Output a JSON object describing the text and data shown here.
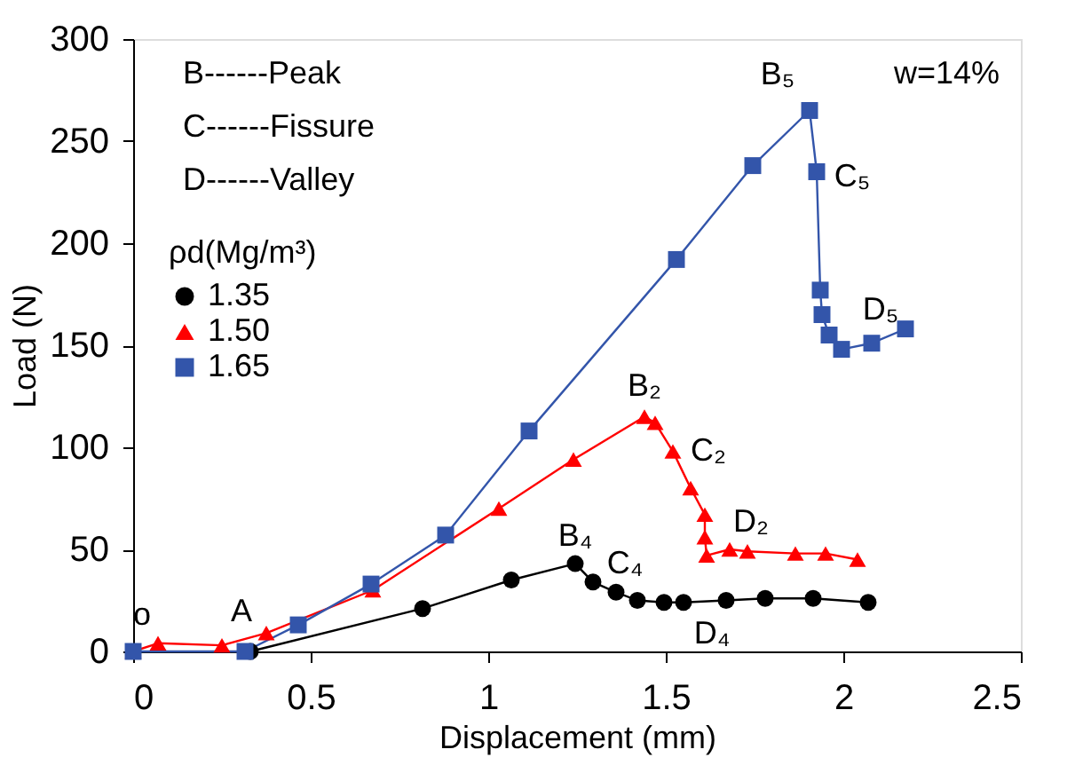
{
  "chart_data": {
    "type": "line",
    "xlabel": "Displacement (mm)",
    "ylabel": "Load (N)",
    "legend_title": "ρd(Mg/m³)",
    "legend": "top left",
    "grid": false,
    "xlim": [
      0,
      2.5
    ],
    "xticks": [
      0,
      0.5,
      1,
      1.5,
      2,
      2.5
    ],
    "ylim": [
      0,
      300
    ],
    "yticks": [
      0,
      50,
      100,
      150,
      200,
      250,
      300
    ],
    "series": [
      {
        "name": "1.35",
        "color": "#000000",
        "marker": "circle",
        "x": [
          0.33,
          0.815,
          1.065,
          1.245,
          1.295,
          1.36,
          1.42,
          1.495,
          1.55,
          1.67,
          1.78,
          1.915,
          2.07
        ],
        "values": [
          0,
          21,
          35,
          43,
          34,
          29,
          25,
          24,
          24,
          25,
          26,
          26,
          24
        ]
      },
      {
        "name": "1.50",
        "color": "#ff0000",
        "marker": "triangle",
        "x": [
          0,
          0.07,
          0.25,
          0.375,
          0.675,
          1.03,
          1.24,
          1.44,
          1.47,
          1.52,
          1.57,
          1.61,
          1.61,
          1.615,
          1.68,
          1.73,
          1.865,
          1.95,
          2.04
        ],
        "values": [
          0,
          4,
          3,
          9,
          30,
          70,
          94,
          115,
          112,
          98,
          80,
          67,
          56,
          47,
          50,
          49,
          48,
          48,
          45
        ]
      },
      {
        "name": "1.65",
        "color": "#3355aa",
        "marker": "square",
        "x": [
          0,
          0.315,
          0.465,
          0.67,
          0.88,
          1.115,
          1.53,
          1.745,
          1.905,
          1.925,
          1.935,
          1.94,
          1.96,
          1.995,
          2.08,
          2.175
        ],
        "values": [
          0,
          0,
          13,
          33,
          57,
          108,
          192,
          238,
          265,
          235,
          177,
          165,
          155,
          148,
          151,
          158
        ]
      }
    ],
    "annotations": [
      "B------Peak",
      "C------Fissure",
      "D------Valley",
      "w=14%",
      {
        "text": "o",
        "x": 0,
        "y": 0
      },
      {
        "text": "A",
        "x": 0.33,
        "y": 0
      },
      {
        "text": "B₄",
        "x": 1.245,
        "y": 43
      },
      {
        "text": "C₄",
        "x": 1.295,
        "y": 34
      },
      {
        "text": "D₄",
        "x": 1.55,
        "y": 24
      },
      {
        "text": "B₂",
        "x": 1.44,
        "y": 115
      },
      {
        "text": "C₂",
        "x": 1.52,
        "y": 98
      },
      {
        "text": "D₂",
        "x": 1.68,
        "y": 50
      },
      {
        "text": "B₅",
        "x": 1.905,
        "y": 265
      },
      {
        "text": "C₅",
        "x": 1.925,
        "y": 235
      },
      {
        "text": "D₅",
        "x": 1.995,
        "y": 148
      }
    ]
  }
}
